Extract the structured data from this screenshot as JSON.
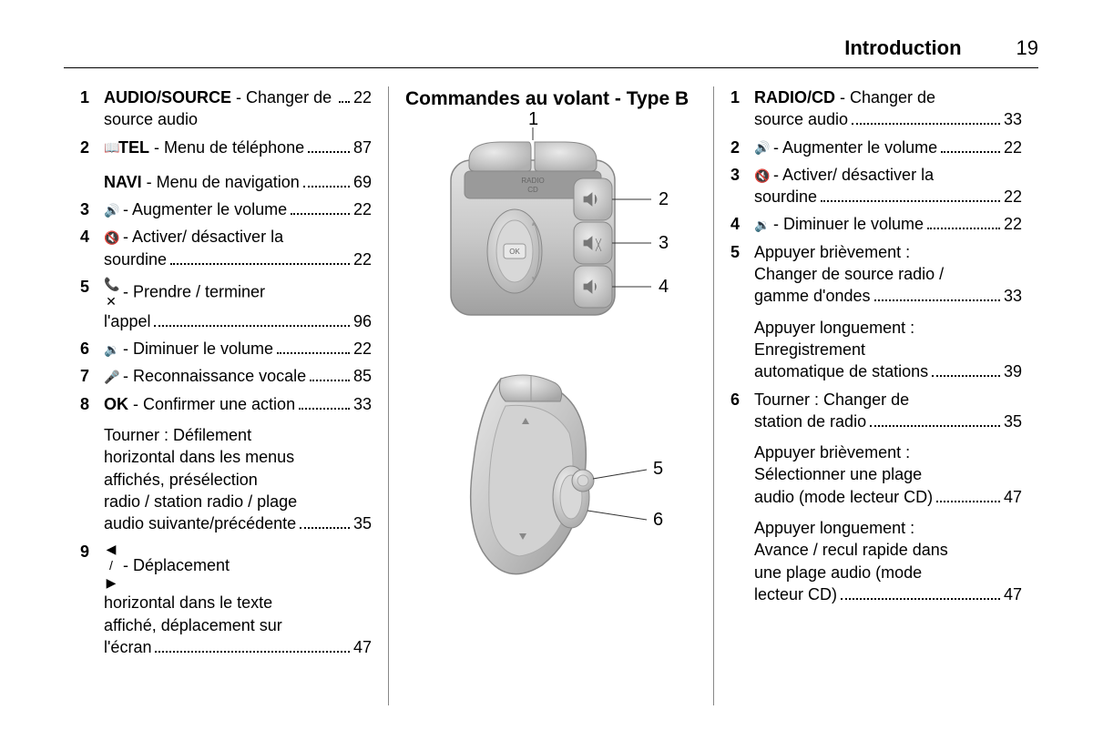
{
  "header": {
    "title": "Introduction",
    "page": "19"
  },
  "col1": {
    "items": [
      {
        "num": "1",
        "bold": "AUDIO/SOURCE",
        "sep": " - ",
        "lines": [
          "Changer de source audio"
        ],
        "page": "22"
      },
      {
        "num": "2",
        "icon": "📖",
        "bold": "TEL",
        "sep": " - ",
        "lines": [
          "Menu de téléphone"
        ],
        "page": "87"
      },
      {
        "num": "",
        "bold": "NAVI",
        "sep": " - ",
        "lines": [
          "Menu de navigation"
        ],
        "page": "69",
        "gapBefore": true
      },
      {
        "num": "3",
        "icon": "🔊",
        "sep": " - ",
        "lines": [
          "Augmenter le volume"
        ],
        "page": "22"
      },
      {
        "num": "4",
        "icon": "🔇",
        "sep": " - ",
        "lines": [
          "Activer/ désactiver la",
          "sourdine"
        ],
        "page": "22"
      },
      {
        "num": "5",
        "icon": "📞✕",
        "sep": " - ",
        "lines": [
          "Prendre / terminer",
          "l'appel"
        ],
        "page": "96"
      },
      {
        "num": "6",
        "icon": "🔉",
        "sep": " - ",
        "lines": [
          "Diminuer le volume"
        ],
        "page": "22"
      },
      {
        "num": "7",
        "icon": "🎤",
        "sep": " - ",
        "lines": [
          "Reconnaissance vocale"
        ],
        "page": "85"
      },
      {
        "num": "8",
        "bold": "OK",
        "sep": " - ",
        "lines": [
          "Confirmer une action"
        ],
        "page": "33"
      },
      {
        "sub": true,
        "lines": [
          "Tourner : Défilement",
          "horizontal dans les menus",
          "affichés, présélection",
          "radio / station radio / plage",
          "audio suivante/précédente"
        ],
        "page": "35"
      },
      {
        "num": "9",
        "icon": "◀ / ▶",
        "sep": " - ",
        "lines": [
          "Déplacement",
          "horizontal dans le texte",
          "affiché, déplacement sur",
          "l'écran"
        ],
        "page": "47"
      }
    ]
  },
  "col2": {
    "title": "Commandes au volant - Type B",
    "diagram1": {
      "label_radio": "RADIO",
      "label_cd": "CD",
      "callouts": {
        "c1": "1",
        "c2": "2",
        "c3": "3",
        "c4": "4"
      },
      "colors": {
        "body": "#c8c8c8",
        "body_dark": "#a8a8a8",
        "body_light": "#e2e2e2",
        "stroke": "#888",
        "text": "#777"
      }
    },
    "diagram2": {
      "callouts": {
        "c5": "5",
        "c6": "6"
      },
      "colors": {
        "body": "#c8c8c8",
        "body_dark": "#a8a8a8",
        "body_light": "#e2e2e2",
        "stroke": "#888"
      }
    }
  },
  "col3": {
    "items": [
      {
        "num": "1",
        "bold": "RADIO/CD",
        "sep": " - ",
        "lines": [
          "Changer de",
          "source audio"
        ],
        "page": "33"
      },
      {
        "num": "2",
        "icon": "🔊",
        "sep": " - ",
        "lines": [
          "Augmenter le volume"
        ],
        "page": "22"
      },
      {
        "num": "3",
        "icon": "🔇",
        "sep": " - ",
        "lines": [
          "Activer/ désactiver la",
          "sourdine"
        ],
        "page": "22"
      },
      {
        "num": "4",
        "icon": "🔉",
        "sep": " - ",
        "lines": [
          "Diminuer le volume"
        ],
        "page": "22"
      },
      {
        "num": "5",
        "lines": [
          "Appuyer brièvement :",
          "Changer de source radio /",
          "gamme d'ondes"
        ],
        "page": "33"
      },
      {
        "sub": true,
        "lines": [
          "Appuyer longuement :",
          "Enregistrement",
          "automatique de stations"
        ],
        "page": "39"
      },
      {
        "num": "6",
        "lines": [
          "Tourner : Changer de",
          "station de radio"
        ],
        "page": "35"
      },
      {
        "sub": true,
        "lines": [
          "Appuyer brièvement :",
          "Sélectionner une plage",
          "audio (mode lecteur CD)"
        ],
        "page": "47"
      },
      {
        "sub": true,
        "lines": [
          "Appuyer longuement :",
          "Avance / recul rapide dans",
          "une plage audio (mode",
          "lecteur CD)"
        ],
        "page": "47"
      }
    ]
  }
}
